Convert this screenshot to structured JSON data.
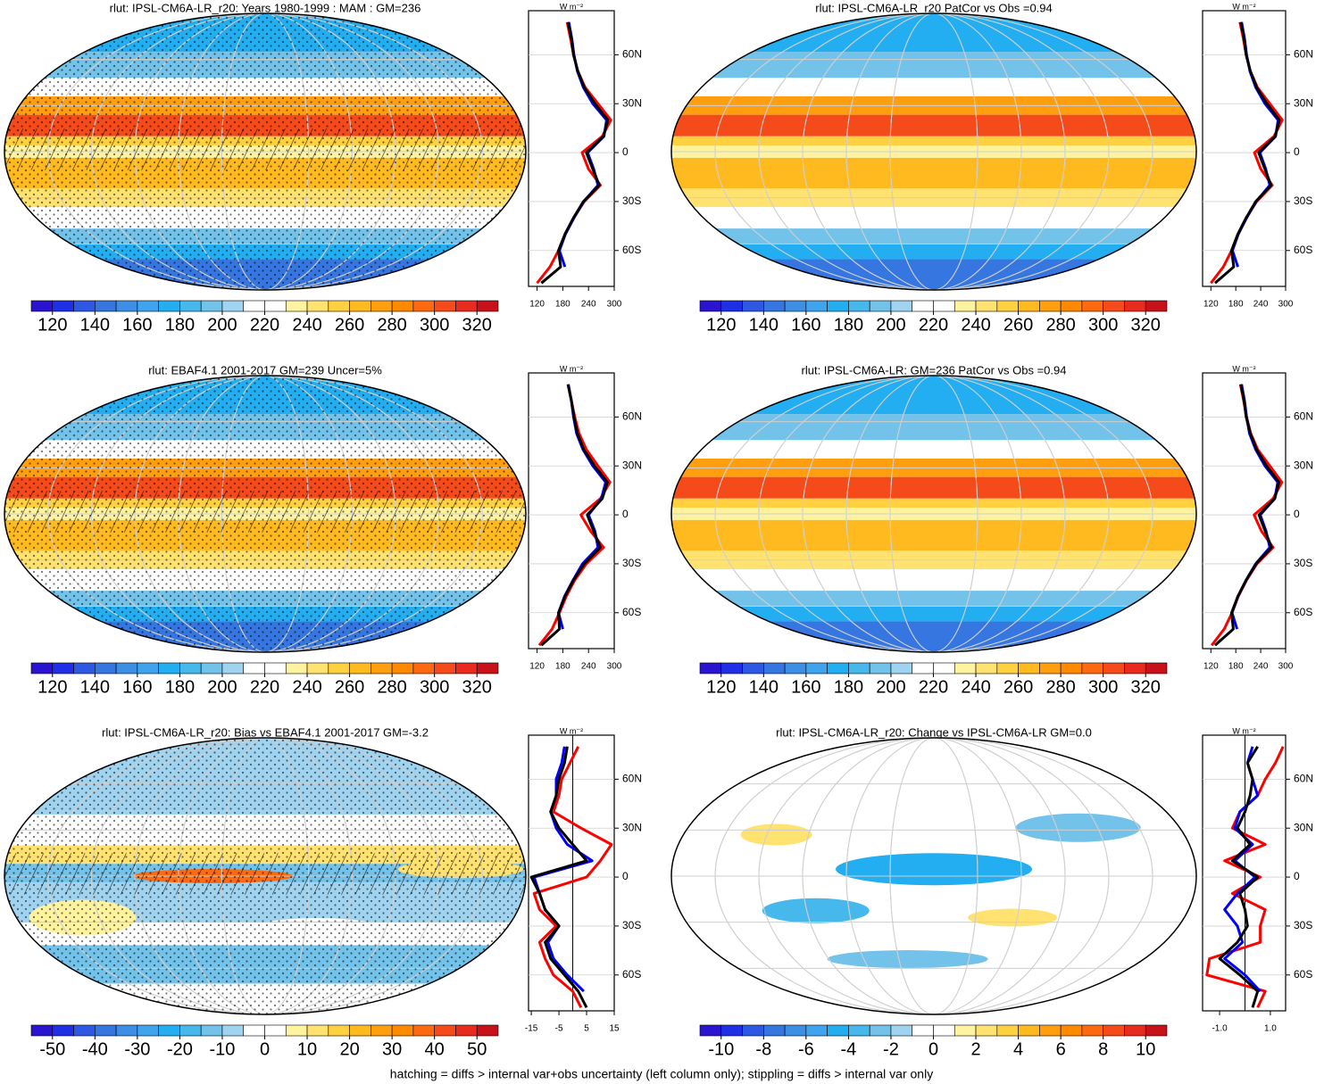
{
  "footnote": "hatching = diffs > internal var+obs uncertainty (left column only); stippling = diffs > internal var only",
  "profile_lat": [
    -80,
    -70,
    -60,
    -50,
    -40,
    -30,
    -20,
    -10,
    0,
    10,
    20,
    30,
    40,
    50,
    60,
    70,
    80
  ],
  "palette": [
    "#2b14d0",
    "#1f2fe6",
    "#2e58e4",
    "#3676e0",
    "#3d8fe6",
    "#3fa3ee",
    "#22aef0",
    "#47b8ec",
    "#72c2ea",
    "#9fd3ef",
    "#ffffff",
    "#ffffff",
    "#fff3a0",
    "#ffe270",
    "#ffd040",
    "#ffba20",
    "#ff9f10",
    "#ff8a00",
    "#ff6a10",
    "#f54a1a",
    "#e82b1e",
    "#c8121a"
  ],
  "panels": [
    {
      "title": "rlut: IPSL-CM6A-LR_r20: Years 1980-1999 : MAM : GM=236",
      "colorbar": {
        "ticks": [
          120,
          140,
          160,
          180,
          200,
          220,
          240,
          260,
          280,
          300,
          320
        ]
      },
      "profile": {
        "unit": "W m⁻²",
        "xlim": [
          100,
          300
        ],
        "xticks": [
          120,
          180,
          240,
          300
        ],
        "ylim": [
          -82,
          87
        ],
        "yticks": [
          {
            "value": 60,
            "label": "60N"
          },
          {
            "value": 30,
            "label": "30N"
          },
          0,
          {
            "value": -30,
            "label": "30S"
          },
          {
            "value": -60,
            "label": "60S"
          }
        ],
        "series": [
          {
            "color": "#ff0000",
            "values": [
              120,
              150,
              170,
              185,
              205,
              230,
              268,
              240,
              225,
              272,
              292,
              262,
              232,
              215,
              205,
              198,
              190
            ]
          },
          {
            "color": "#0000ff",
            "values": [
              null,
              185,
              172,
              186,
              206,
              229,
              262,
              252,
              238,
              276,
              282,
              250,
              228,
              214,
              206,
              201,
              194
            ]
          },
          {
            "color": "#000000",
            "values": [
              130,
              175,
              170,
              185,
              205,
              228,
              265,
              250,
              235,
              275,
              285,
              255,
              230,
              215,
              205,
              200,
              192
            ]
          }
        ]
      }
    },
    {
      "title": "rlut: IPSL-CM6A-LR_r20 PatCor vs Obs =0.94",
      "colorbar": {
        "ticks": [
          120,
          140,
          160,
          180,
          200,
          220,
          240,
          260,
          280,
          300,
          320
        ]
      },
      "profile": {
        "unit": "W m⁻²",
        "xlim": [
          100,
          300
        ],
        "xticks": [
          120,
          180,
          240,
          300
        ],
        "ylim": [
          -82,
          87
        ],
        "yticks": [
          {
            "value": 60,
            "label": "60N"
          },
          {
            "value": 30,
            "label": "30N"
          },
          0,
          {
            "value": -30,
            "label": "30S"
          },
          {
            "value": -60,
            "label": "60S"
          }
        ],
        "series": [
          {
            "color": "#ff0000",
            "values": [
              120,
              150,
              170,
              185,
              205,
              230,
              268,
              240,
              225,
              272,
              292,
              262,
              232,
              215,
              205,
              198,
              190
            ]
          },
          {
            "color": "#0000ff",
            "values": [
              null,
              185,
              172,
              186,
              206,
              229,
              262,
              252,
              238,
              276,
              282,
              250,
              228,
              214,
              206,
              201,
              194
            ]
          },
          {
            "color": "#000000",
            "values": [
              130,
              175,
              170,
              185,
              205,
              228,
              265,
              250,
              235,
              275,
              285,
              255,
              230,
              215,
              205,
              200,
              192
            ]
          }
        ]
      }
    },
    {
      "title": "rlut: EBAF4.1 2001-2017 GM=239 Uncer=5%",
      "colorbar": {
        "ticks": [
          120,
          140,
          160,
          180,
          200,
          220,
          240,
          260,
          280,
          300,
          320
        ]
      },
      "profile": {
        "unit": "W m⁻²",
        "xlim": [
          100,
          300
        ],
        "xticks": [
          120,
          180,
          240,
          300
        ],
        "ylim": [
          -82,
          87
        ],
        "yticks": [
          {
            "value": 60,
            "label": "60N"
          },
          {
            "value": 30,
            "label": "30N"
          },
          0,
          {
            "value": -30,
            "label": "30S"
          },
          {
            "value": -60,
            "label": "60S"
          }
        ],
        "series": [
          {
            "color": "#ff0000",
            "values": [
              125,
              155,
              172,
              188,
              208,
              235,
              275,
              245,
              222,
              268,
              290,
              262,
              235,
              218,
              208,
              200,
              192
            ]
          },
          {
            "color": "#0000ff",
            "values": [
              null,
              180,
              170,
              184,
              204,
              226,
              262,
              255,
              240,
              270,
              280,
              250,
              227,
              212,
              205,
              200,
              193
            ]
          },
          {
            "color": "#000000",
            "values": [
              130,
              172,
              170,
              185,
              205,
              230,
              268,
              252,
              237,
              272,
              284,
              254,
              229,
              214,
              206,
              200,
              192
            ]
          }
        ]
      }
    },
    {
      "title": "rlut: IPSL-CM6A-LR: GM=236 PatCor vs Obs =0.94",
      "colorbar": {
        "ticks": [
          120,
          140,
          160,
          180,
          200,
          220,
          240,
          260,
          280,
          300,
          320
        ]
      },
      "profile": {
        "unit": "W m⁻²",
        "xlim": [
          100,
          300
        ],
        "xticks": [
          120,
          180,
          240,
          300
        ],
        "ylim": [
          -82,
          87
        ],
        "yticks": [
          {
            "value": 60,
            "label": "60N"
          },
          {
            "value": 30,
            "label": "30N"
          },
          0,
          {
            "value": -30,
            "label": "30S"
          },
          {
            "value": -60,
            "label": "60S"
          }
        ],
        "series": [
          {
            "color": "#ff0000",
            "values": [
              122,
              152,
              171,
              186,
              206,
              231,
              270,
              242,
              224,
              270,
              291,
              262,
              233,
              216,
              206,
              199,
              191
            ]
          },
          {
            "color": "#0000ff",
            "values": [
              null,
              183,
              171,
              185,
              205,
              228,
              262,
              253,
              239,
              274,
              281,
              250,
              228,
              213,
              206,
              201,
              194
            ]
          },
          {
            "color": "#000000",
            "values": [
              130,
              174,
              170,
              185,
              205,
              229,
              266,
              251,
              236,
              274,
              284,
              254,
              230,
              215,
              205,
              200,
              192
            ]
          }
        ]
      }
    },
    {
      "title": "rlut: IPSL-CM6A-LR_r20: Bias vs EBAF4.1 2001-2017 GM=-3.2",
      "colorbar": {
        "ticks": [
          -50,
          -40,
          -30,
          -20,
          -10,
          0,
          10,
          20,
          30,
          40,
          50
        ]
      },
      "profile": {
        "unit": "W m⁻²",
        "xlim": [
          -16,
          15
        ],
        "xticks": [
          -15,
          -5,
          5,
          15
        ],
        "ylim": [
          -82,
          87
        ],
        "yticks": [
          {
            "value": 60,
            "label": "60N"
          },
          {
            "value": 30,
            "label": "30N"
          },
          0,
          {
            "value": -30,
            "label": "30S"
          },
          {
            "value": -60,
            "label": "60S"
          }
        ],
        "series": [
          {
            "color": "#ff0000",
            "values": [
              3,
              0,
              -7,
              -10,
              -12,
              -6,
              -12,
              -14,
              5,
              10,
              14,
              3,
              -7,
              -5,
              -4,
              -1,
              2
            ]
          },
          {
            "color": "#0000ff",
            "values": [
              null,
              4,
              -2,
              -7,
              -9,
              -5,
              -10,
              -12,
              -14,
              7,
              -2,
              -6,
              -8,
              -6,
              -6,
              -4,
              -3
            ]
          },
          {
            "color": "#000000",
            "values": [
              5,
              2,
              -3,
              -8,
              -10,
              -5,
              -10,
              -12,
              -15,
              5,
              0,
              -5,
              -8,
              -6,
              -5,
              -3,
              -2
            ]
          }
        ]
      }
    },
    {
      "title": "rlut: IPSL-CM6A-LR_r20: Change vs IPSL-CM6A-LR GM=0.0",
      "colorbar": {
        "ticks": [
          -10,
          -8,
          -6,
          -4,
          -2,
          0,
          2,
          4,
          6,
          8,
          10
        ]
      },
      "profile": {
        "unit": "W m⁻²",
        "xlim": [
          -1.67,
          1.6
        ],
        "xticks": [
          {
            "value": -1,
            "label": "-1.0"
          },
          {
            "value": 1,
            "label": "1.0"
          }
        ],
        "ylim": [
          -82,
          87
        ],
        "yticks": [
          {
            "value": 60,
            "label": "60N"
          },
          {
            "value": 30,
            "label": "30N"
          },
          0,
          {
            "value": -30,
            "label": "30S"
          },
          {
            "value": -60,
            "label": "60S"
          }
        ],
        "series": [
          {
            "color": "#ff0000",
            "values": [
              0.5,
              0.8,
              -1.5,
              -1.4,
              0.6,
              0.6,
              0.8,
              -0.5,
              0.6,
              -0.8,
              0.8,
              -0.5,
              -0.2,
              0.5,
              0.8,
              1.2,
              1.5
            ]
          },
          {
            "color": "#0000ff",
            "values": [
              null,
              0.6,
              0,
              -0.8,
              -0.1,
              -0.3,
              -0.8,
              -0.3,
              0.4,
              -0.4,
              0.3,
              -0.4,
              -0.2,
              0.5,
              0.3,
              0.1,
              0.3
            ]
          },
          {
            "color": "#000000",
            "values": [
              0.3,
              0.5,
              -0.2,
              -1.0,
              -0.3,
              0.1,
              0,
              -0.2,
              0.5,
              -0.5,
              0.2,
              -0.3,
              0,
              0.2,
              0.3,
              0.1,
              0.5
            ]
          }
        ]
      }
    }
  ]
}
